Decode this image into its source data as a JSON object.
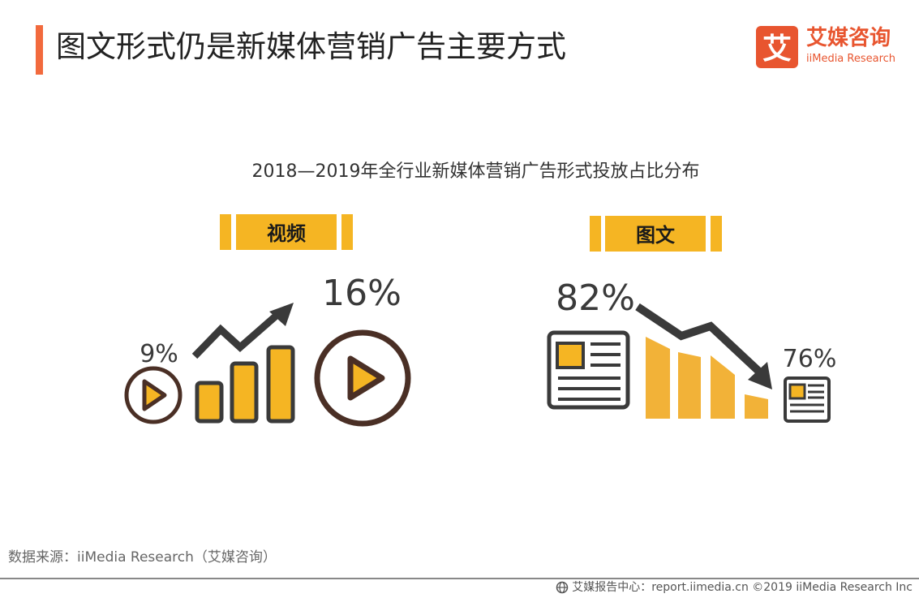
{
  "page": {
    "title": "图文形式仍是新媒体营销广告主要方式",
    "source": "数据来源：iiMedia Research（艾媒咨询）",
    "footer": "艾媒报告中心：report.iimedia.cn  ©2019  iiMedia Research  Inc"
  },
  "logo": {
    "glyph": "艾",
    "cn": "艾媒咨询",
    "en": "iiMedia Research",
    "color": "#e8552f"
  },
  "colors": {
    "accent": "#f26a3d",
    "yellow": "#f5b523",
    "dark": "#3a3a3a",
    "brown": "#4a2f25"
  },
  "chart_data": {
    "type": "bar",
    "title": "2018—2019年全行业新媒体营销广告形式投放占比分布",
    "categories": [
      "视频",
      "图文"
    ],
    "series": [
      {
        "name": "2018",
        "values": [
          9,
          82
        ]
      },
      {
        "name": "2019",
        "values": [
          16,
          76
        ]
      }
    ],
    "labels": {
      "视频": [
        "9%",
        "16%"
      ],
      "图文": [
        "82%",
        "76%"
      ]
    },
    "unit": "%",
    "trend": {
      "视频": "up",
      "图文": "down"
    },
    "icons": {
      "视频": "play-icon",
      "图文": "article-icon"
    }
  }
}
